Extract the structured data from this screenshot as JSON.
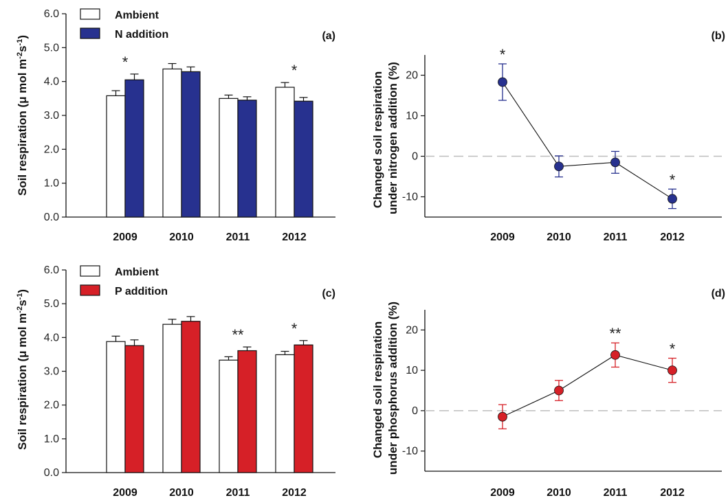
{
  "chart_data": [
    {
      "type": "bar",
      "panel_label": "(a)",
      "ylabel": "Soil respiration (μ mol m",
      "ylabel_sup1": "-2",
      "ylabel_mid": "s",
      "ylabel_sup2": "-1",
      "ylabel_end": ")",
      "ylim": [
        0,
        6
      ],
      "yticks": [
        "0.0",
        "1.0",
        "2.0",
        "3.0",
        "4.0",
        "5.0",
        "6.0"
      ],
      "categories": [
        "2009",
        "2010",
        "2011",
        "2012"
      ],
      "series": [
        {
          "name": "Ambient",
          "color": "#ffffff",
          "values": [
            3.58,
            4.37,
            3.5,
            3.83
          ],
          "errors": [
            0.15,
            0.16,
            0.1,
            0.14
          ]
        },
        {
          "name": "N addition",
          "color": "#27318f",
          "values": [
            4.05,
            4.29,
            3.45,
            3.42
          ],
          "errors": [
            0.17,
            0.14,
            0.1,
            0.11
          ]
        }
      ],
      "significance": [
        "*",
        "",
        "",
        "*"
      ]
    },
    {
      "type": "line",
      "panel_label": "(b)",
      "ylabel_line1": "Changed soil respiration",
      "ylabel_line2": "under nitrogen addition (%)",
      "ylim": [
        -15,
        25
      ],
      "yticks": [
        "-10",
        "0",
        "10",
        "20"
      ],
      "categories": [
        "2009",
        "2010",
        "2011",
        "2012"
      ],
      "color": "#27318f",
      "values": [
        18.3,
        -2.5,
        -1.5,
        -10.5
      ],
      "errors": [
        4.5,
        2.6,
        2.7,
        2.4
      ],
      "significance": [
        "*",
        "",
        "",
        "*"
      ],
      "reference_line": 0
    },
    {
      "type": "bar",
      "panel_label": "(c)",
      "ylabel": "Soil respiration (μ mol m",
      "ylabel_sup1": "-2",
      "ylabel_mid": "s",
      "ylabel_sup2": "-1",
      "ylabel_end": ")",
      "ylim": [
        0,
        6
      ],
      "yticks": [
        "0.0",
        "1.0",
        "2.0",
        "3.0",
        "4.0",
        "5.0",
        "6.0"
      ],
      "categories": [
        "2009",
        "2010",
        "2011",
        "2012"
      ],
      "series": [
        {
          "name": "Ambient",
          "color": "#ffffff",
          "values": [
            3.88,
            4.39,
            3.33,
            3.49
          ],
          "errors": [
            0.16,
            0.15,
            0.1,
            0.1
          ]
        },
        {
          "name": "P addition",
          "color": "#d62027",
          "values": [
            3.76,
            4.48,
            3.61,
            3.78
          ],
          "errors": [
            0.17,
            0.14,
            0.11,
            0.13
          ]
        }
      ],
      "significance": [
        "",
        "",
        "**",
        "*"
      ]
    },
    {
      "type": "line",
      "panel_label": "(d)",
      "ylabel_line1": "Changed soil respiration",
      "ylabel_line2": "under phosphorus addition (%)",
      "ylim": [
        -15,
        25
      ],
      "yticks": [
        "-10",
        "0",
        "10",
        "20"
      ],
      "categories": [
        "2009",
        "2010",
        "2011",
        "2012"
      ],
      "color": "#d62027",
      "values": [
        -1.5,
        5.0,
        13.8,
        10.0
      ],
      "errors": [
        3.0,
        2.5,
        3.0,
        3.0
      ],
      "significance": [
        "",
        "",
        "**",
        "*"
      ],
      "reference_line": 0
    }
  ]
}
